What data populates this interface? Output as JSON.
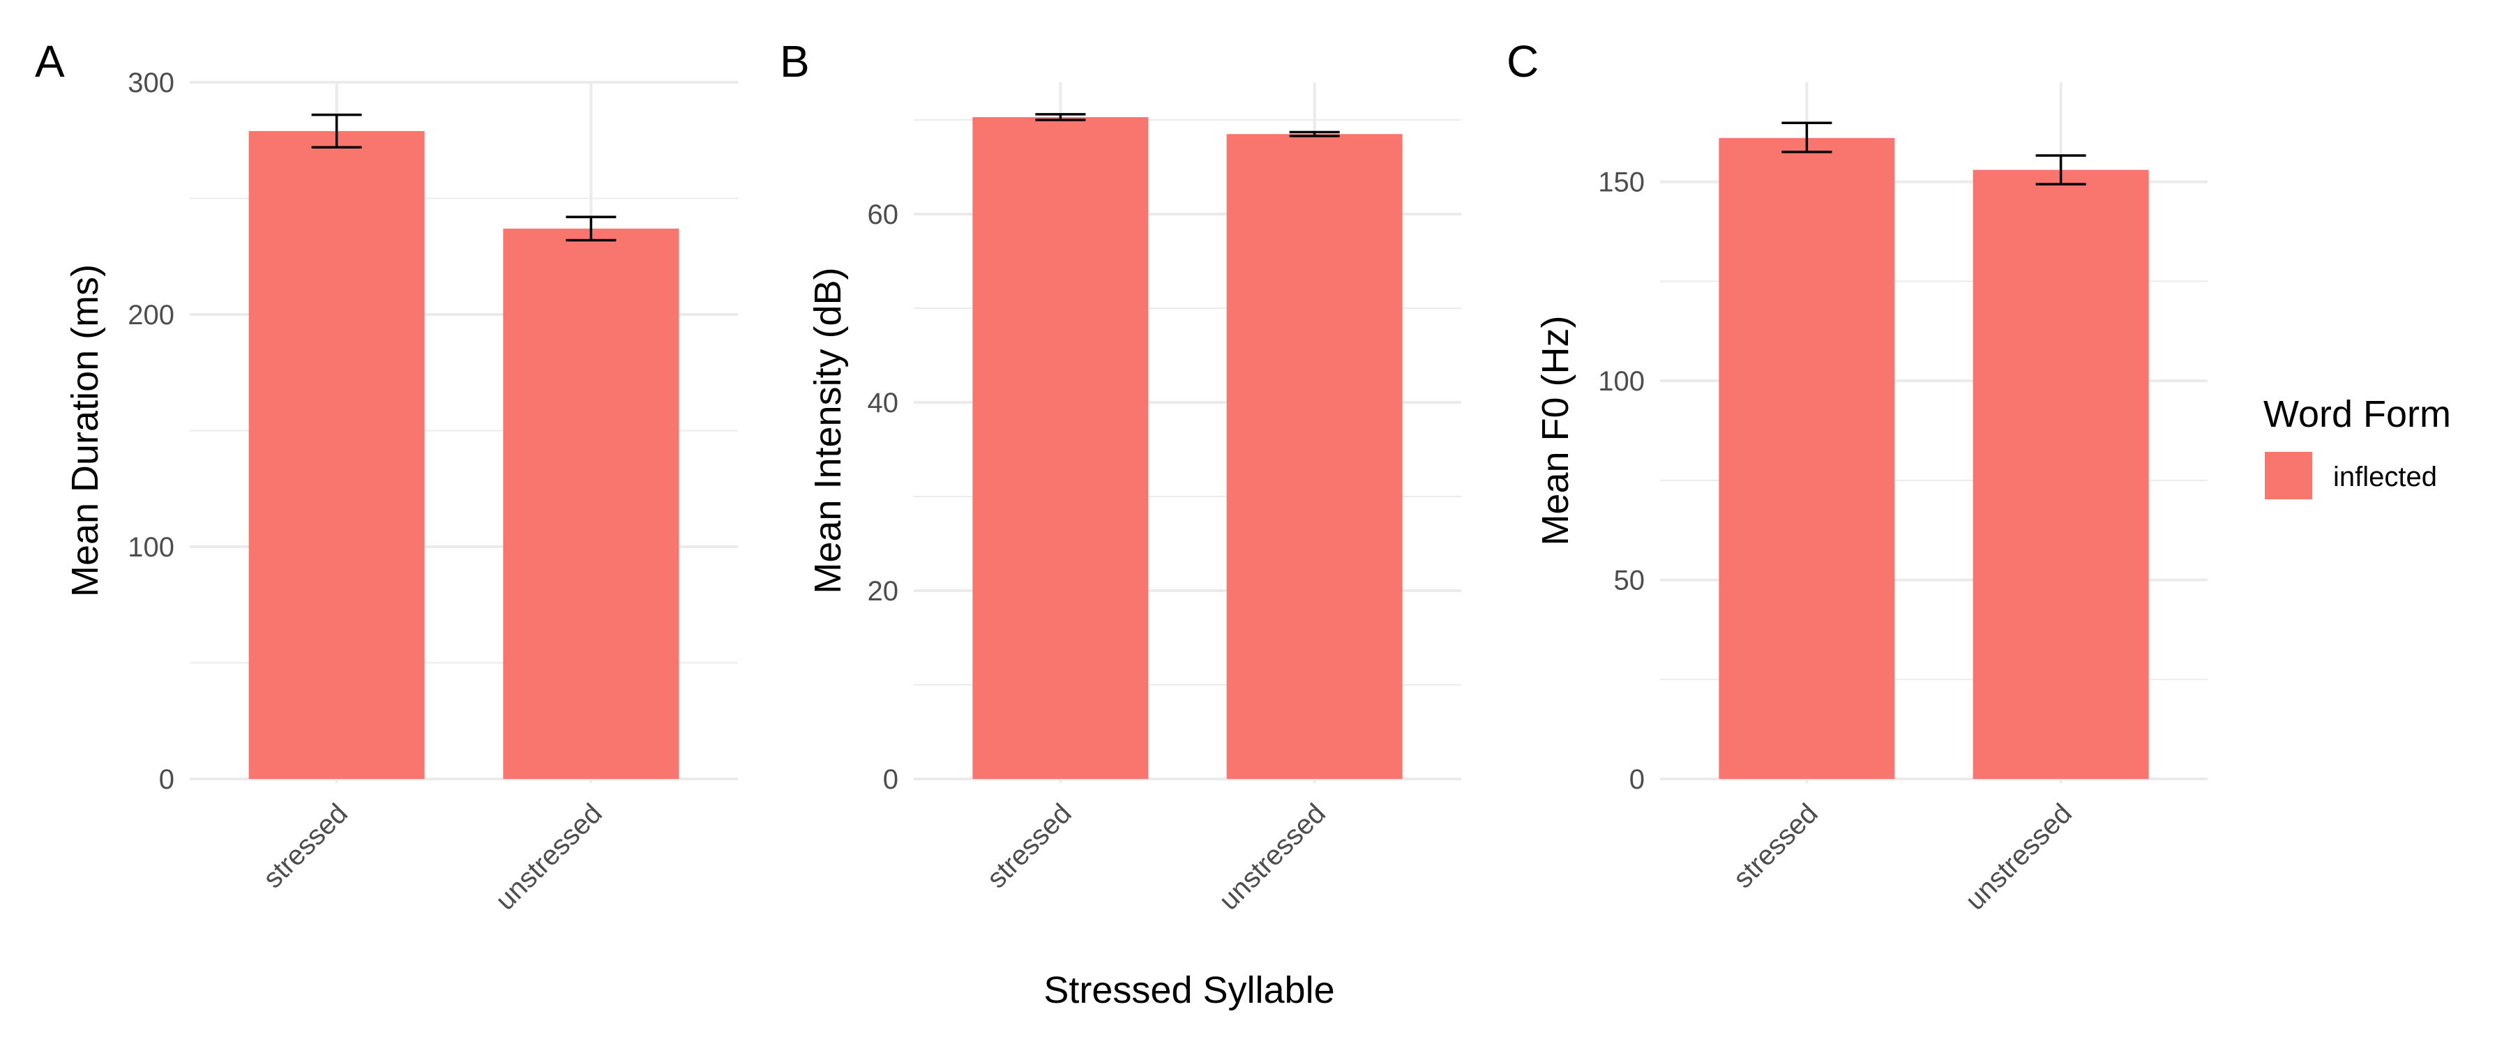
{
  "shared_xlabel": "Stressed Syllable",
  "legend": {
    "title": "Word Form",
    "items": [
      {
        "label": "inflected",
        "color": "#F8766D"
      }
    ]
  },
  "colors": {
    "bar": "#F8766D",
    "grid": "#ebebeb",
    "error_bar": "#000000"
  },
  "chart_data": [
    {
      "type": "bar",
      "panel": "A",
      "categories": [
        "stressed",
        "unstressed"
      ],
      "values": [
        279,
        237
      ],
      "error_bars": [
        [
          272,
          286
        ],
        [
          232,
          242
        ]
      ],
      "xlabel": "Stressed Syllable",
      "ylabel": "Mean Duration (ms)",
      "ylim": [
        0,
        300
      ],
      "yticks": [
        0,
        100,
        200,
        300
      ],
      "grid": true,
      "legend": {
        "title": "Word Form",
        "placement": "right"
      }
    },
    {
      "type": "bar",
      "panel": "B",
      "categories": [
        "stressed",
        "unstressed"
      ],
      "values": [
        70.3,
        68.5
      ],
      "error_bars": [
        [
          70.0,
          70.6
        ],
        [
          68.3,
          68.7
        ]
      ],
      "xlabel": "Stressed Syllable",
      "ylabel": "Mean Intensity (dB)",
      "ylim": [
        0,
        74
      ],
      "yticks": [
        0,
        20,
        40,
        60
      ],
      "grid": true,
      "legend": {
        "title": "Word Form",
        "placement": "right"
      }
    },
    {
      "type": "bar",
      "panel": "C",
      "categories": [
        "stressed",
        "unstressed"
      ],
      "values": [
        161,
        153
      ],
      "error_bars": [
        [
          157.5,
          164.8
        ],
        [
          149.4,
          156.6
        ]
      ],
      "xlabel": "Stressed Syllable",
      "ylabel": "Mean F0 (Hz)",
      "ylim": [
        0,
        175
      ],
      "yticks": [
        0,
        50,
        100,
        150
      ],
      "grid": true,
      "legend": {
        "title": "Word Form",
        "placement": "right"
      }
    }
  ]
}
